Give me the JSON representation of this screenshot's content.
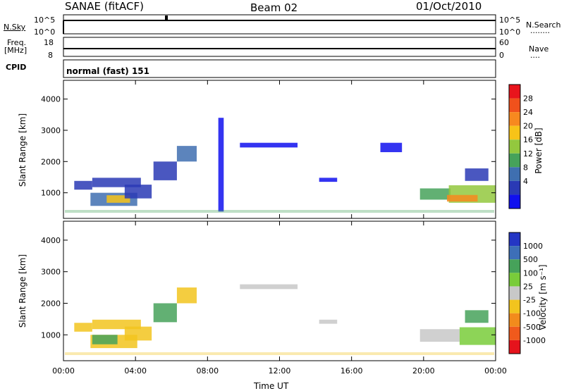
{
  "header": {
    "station": "SANAE (fitACF)",
    "beam": "Beam 02",
    "date": "01/Oct/2010"
  },
  "top_panels": {
    "nsky_label": "N.Sky",
    "nsearch_label": "N.Search",
    "nsearch_key": "........",
    "power_scale_top": "10^5",
    "power_scale_bottom": "10^0",
    "freq_label": "Freq.",
    "freq_unit": "[MHz]",
    "freq_top": "18",
    "freq_bottom": "8",
    "nave_label": "Nave",
    "nave_key": "....",
    "nave_top": "60",
    "nave_bottom": "0",
    "cpid_label": "CPID",
    "cpid_value": "normal (fast) 151"
  },
  "chart_data": [
    {
      "type": "heatmap",
      "panel": "power",
      "ylabel": "Slant Range [km]",
      "xlabel": "Time UT",
      "xlim_hours": [
        0,
        24
      ],
      "ylim_km": [
        180,
        4600
      ],
      "yticks": [
        1000,
        2000,
        3000,
        4000
      ],
      "xticks": [
        "00:00",
        "04:00",
        "08:00",
        "12:00",
        "16:00",
        "20:00",
        "00:00"
      ],
      "colorbar": {
        "label": "Power [dB]",
        "ticks": [
          "28",
          "24",
          "20",
          "16",
          "12",
          "8",
          "4"
        ],
        "colors": [
          "#e8141c",
          "#f0511c",
          "#f7891f",
          "#f7c318",
          "#93c83e",
          "#46a25a",
          "#3f6fb0",
          "#2a3ab5",
          "#1010ee"
        ]
      },
      "regions": [
        {
          "t0": 0.6,
          "t1": 1.6,
          "r0": 1100,
          "r1": 1380,
          "level": 1
        },
        {
          "t0": 1.5,
          "t1": 4.1,
          "r0": 580,
          "r1": 1000,
          "level": 2
        },
        {
          "t0": 2.4,
          "t1": 3.7,
          "r0": 680,
          "r1": 920,
          "level": 5
        },
        {
          "t0": 1.6,
          "t1": 4.3,
          "r0": 1180,
          "r1": 1480,
          "level": 1
        },
        {
          "t0": 3.4,
          "t1": 4.9,
          "r0": 820,
          "r1": 1260,
          "level": 1
        },
        {
          "t0": 5.0,
          "t1": 6.3,
          "r0": 1400,
          "r1": 2000,
          "level": 1
        },
        {
          "t0": 6.3,
          "t1": 7.4,
          "r0": 2000,
          "r1": 2500,
          "level": 2
        },
        {
          "t0": 19.8,
          "t1": 21.5,
          "r0": 780,
          "r1": 1140,
          "level": 3
        },
        {
          "t0": 21.4,
          "t1": 24.0,
          "r0": 680,
          "r1": 1240,
          "level": 4
        },
        {
          "t0": 21.3,
          "t1": 23.0,
          "r0": 720,
          "r1": 930,
          "level": 6
        },
        {
          "t0": 8.6,
          "t1": 8.9,
          "r0": 400,
          "r1": 3400,
          "level": 0
        },
        {
          "t0": 9.8,
          "t1": 13.0,
          "r0": 2450,
          "r1": 2600,
          "level": 0
        },
        {
          "t0": 14.2,
          "t1": 15.2,
          "r0": 1350,
          "r1": 1480,
          "level": 0
        },
        {
          "t0": 17.6,
          "t1": 18.8,
          "r0": 2300,
          "r1": 2600,
          "level": 0
        },
        {
          "t0": 22.3,
          "t1": 23.6,
          "r0": 1380,
          "r1": 1780,
          "level": 1
        }
      ]
    },
    {
      "type": "heatmap",
      "panel": "velocity",
      "ylabel": "Slant Range [km]",
      "xlabel": "Time UT",
      "xlim_hours": [
        0,
        24
      ],
      "ylim_km": [
        180,
        4600
      ],
      "yticks": [
        1000,
        2000,
        3000,
        4000
      ],
      "xticks": [
        "00:00",
        "04:00",
        "08:00",
        "12:00",
        "16:00",
        "20:00",
        "00:00"
      ],
      "colorbar": {
        "label": "Velocity [m s⁻¹]",
        "ticks": [
          "1000",
          "500",
          "100",
          "25",
          "-25",
          "-100",
          "-500",
          "-1000"
        ],
        "colors": [
          "#2436c4",
          "#3d6fb8",
          "#46a25a",
          "#79cc3a",
          "#c8c8c8",
          "#f2c41e",
          "#f28b1c",
          "#f05a1c",
          "#e5131c"
        ]
      },
      "regions": [
        {
          "t0": 0.6,
          "t1": 1.6,
          "r0": 1100,
          "r1": 1380,
          "level": 3
        },
        {
          "t0": 1.5,
          "t1": 4.1,
          "r0": 580,
          "r1": 1000,
          "level": 3
        },
        {
          "t0": 1.6,
          "t1": 3.0,
          "r0": 700,
          "r1": 1000,
          "level": 6
        },
        {
          "t0": 1.6,
          "t1": 4.3,
          "r0": 1180,
          "r1": 1480,
          "level": 3
        },
        {
          "t0": 3.4,
          "t1": 4.9,
          "r0": 820,
          "r1": 1260,
          "level": 3
        },
        {
          "t0": 5.0,
          "t1": 6.3,
          "r0": 1400,
          "r1": 2000,
          "level": 6
        },
        {
          "t0": 6.3,
          "t1": 7.4,
          "r0": 2000,
          "r1": 2500,
          "level": 3
        },
        {
          "t0": 19.8,
          "t1": 22.0,
          "r0": 780,
          "r1": 1180,
          "level": 4
        },
        {
          "t0": 22.0,
          "t1": 24.0,
          "r0": 680,
          "r1": 1240,
          "level": 5
        },
        {
          "t0": 9.8,
          "t1": 13.0,
          "r0": 2450,
          "r1": 2600,
          "level": 4
        },
        {
          "t0": 14.2,
          "t1": 15.2,
          "r0": 1350,
          "r1": 1480,
          "level": 4
        },
        {
          "t0": 22.3,
          "t1": 23.6,
          "r0": 1380,
          "r1": 1780,
          "level": 6
        }
      ]
    }
  ]
}
